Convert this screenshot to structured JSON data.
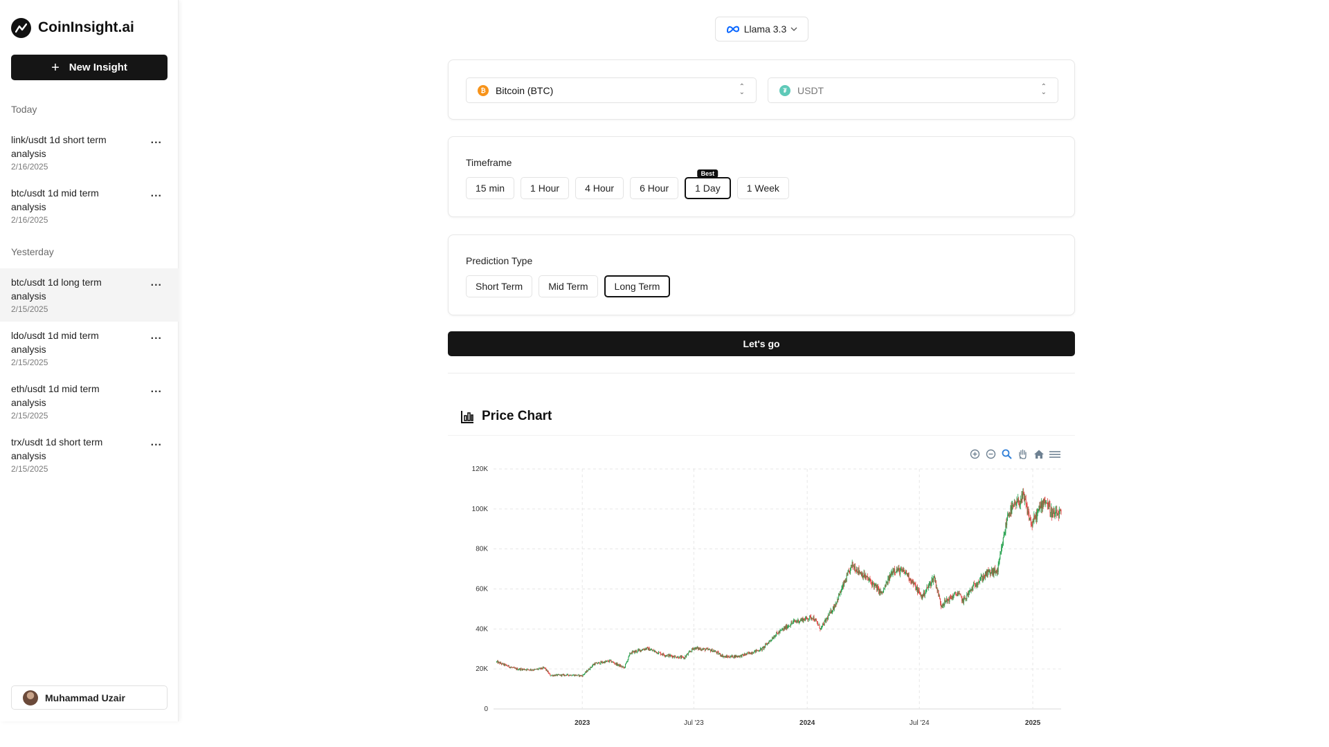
{
  "app": {
    "name": "CoinInsight.ai"
  },
  "sidebar": {
    "new_button_label": "New Insight",
    "sections": [
      {
        "label": "Today",
        "items": [
          {
            "title": "link/usdt 1d short term analysis",
            "date": "2/16/2025",
            "active": false
          },
          {
            "title": "btc/usdt 1d mid term analysis",
            "date": "2/16/2025",
            "active": false
          }
        ]
      },
      {
        "label": "Yesterday",
        "items": [
          {
            "title": "btc/usdt 1d long term analysis",
            "date": "2/15/2025",
            "active": true
          },
          {
            "title": "ldo/usdt 1d mid term analysis",
            "date": "2/15/2025",
            "active": false
          },
          {
            "title": "eth/usdt 1d mid term analysis",
            "date": "2/15/2025",
            "active": false
          },
          {
            "title": "trx/usdt 1d short term analysis",
            "date": "2/15/2025",
            "active": false
          }
        ]
      }
    ],
    "more_glyph": "...",
    "user_name": "Muhammad Uzair"
  },
  "model_selector": {
    "label": "Llama 3.3"
  },
  "pair": {
    "base": {
      "label": "Bitcoin (BTC)",
      "glyph": "₿",
      "color": "#f7931a"
    },
    "quote": {
      "label": "USDT",
      "glyph": "₮",
      "color": "#5ec9b8"
    }
  },
  "timeframe": {
    "label": "Timeframe",
    "options": [
      "15 min",
      "1 Hour",
      "4 Hour",
      "6 Hour",
      "1 Day",
      "1 Week"
    ],
    "selected": "1 Day",
    "badge_option": "1 Day",
    "badge_label": "Best"
  },
  "prediction": {
    "label": "Prediction Type",
    "options": [
      "Short Term",
      "Mid Term",
      "Long Term"
    ],
    "selected": "Long Term"
  },
  "go_button_label": "Let's go",
  "chart_section": {
    "title": "Price Chart"
  },
  "toolbar_icons": [
    "zoom-in-icon",
    "zoom-out-icon",
    "selection-zoom-icon",
    "pan-hand-icon",
    "reset-home-icon",
    "menu-icon"
  ],
  "colors": {
    "up": "#22a04b",
    "down": "#e0413f",
    "accent": "#151515"
  },
  "chart_data": {
    "type": "candlestick",
    "x_ticks": [
      "2023",
      "Jul '23",
      "2024",
      "Jul '24",
      "2025"
    ],
    "x_tick_positions": [
      "2023-01-01",
      "2023-07-01",
      "2024-01-01",
      "2024-07-01",
      "2025-01-01"
    ],
    "y_ticks": [
      "0",
      "20K",
      "40K",
      "60K",
      "80K",
      "100K",
      "120K"
    ],
    "ylim": [
      0,
      120000
    ],
    "xlim": [
      "2022-08-10",
      "2025-02-16"
    ],
    "grid": true,
    "series": [
      {
        "date": "2022-08-15",
        "close": 23500
      },
      {
        "date": "2022-09-15",
        "close": 20000
      },
      {
        "date": "2022-10-15",
        "close": 19600
      },
      {
        "date": "2022-11-01",
        "close": 20500
      },
      {
        "date": "2022-11-10",
        "close": 16800
      },
      {
        "date": "2022-12-15",
        "close": 17000
      },
      {
        "date": "2023-01-01",
        "close": 16600
      },
      {
        "date": "2023-01-20",
        "close": 22500
      },
      {
        "date": "2023-02-15",
        "close": 24000
      },
      {
        "date": "2023-03-10",
        "close": 20500
      },
      {
        "date": "2023-03-20",
        "close": 28000
      },
      {
        "date": "2023-04-15",
        "close": 30300
      },
      {
        "date": "2023-05-15",
        "close": 27000
      },
      {
        "date": "2023-06-15",
        "close": 25500
      },
      {
        "date": "2023-07-01",
        "close": 30500
      },
      {
        "date": "2023-08-01",
        "close": 29200
      },
      {
        "date": "2023-08-20",
        "close": 26000
      },
      {
        "date": "2023-09-15",
        "close": 26500
      },
      {
        "date": "2023-10-20",
        "close": 30000
      },
      {
        "date": "2023-11-10",
        "close": 37000
      },
      {
        "date": "2023-12-10",
        "close": 43500
      },
      {
        "date": "2024-01-10",
        "close": 46000
      },
      {
        "date": "2024-01-23",
        "close": 40000
      },
      {
        "date": "2024-02-15",
        "close": 52000
      },
      {
        "date": "2024-03-14",
        "close": 72000
      },
      {
        "date": "2024-04-15",
        "close": 63000
      },
      {
        "date": "2024-05-01",
        "close": 57500
      },
      {
        "date": "2024-05-20",
        "close": 70000
      },
      {
        "date": "2024-06-10",
        "close": 68000
      },
      {
        "date": "2024-07-05",
        "close": 56000
      },
      {
        "date": "2024-07-25",
        "close": 66000
      },
      {
        "date": "2024-08-05",
        "close": 52000
      },
      {
        "date": "2024-09-01",
        "close": 58000
      },
      {
        "date": "2024-09-10",
        "close": 54000
      },
      {
        "date": "2024-10-01",
        "close": 63000
      },
      {
        "date": "2024-10-20",
        "close": 68000
      },
      {
        "date": "2024-11-05",
        "close": 69000
      },
      {
        "date": "2024-11-22",
        "close": 98000
      },
      {
        "date": "2024-12-17",
        "close": 106000
      },
      {
        "date": "2024-12-30",
        "close": 92000
      },
      {
        "date": "2025-01-20",
        "close": 105000
      },
      {
        "date": "2025-02-03",
        "close": 97000
      },
      {
        "date": "2025-02-16",
        "close": 97500
      }
    ]
  }
}
